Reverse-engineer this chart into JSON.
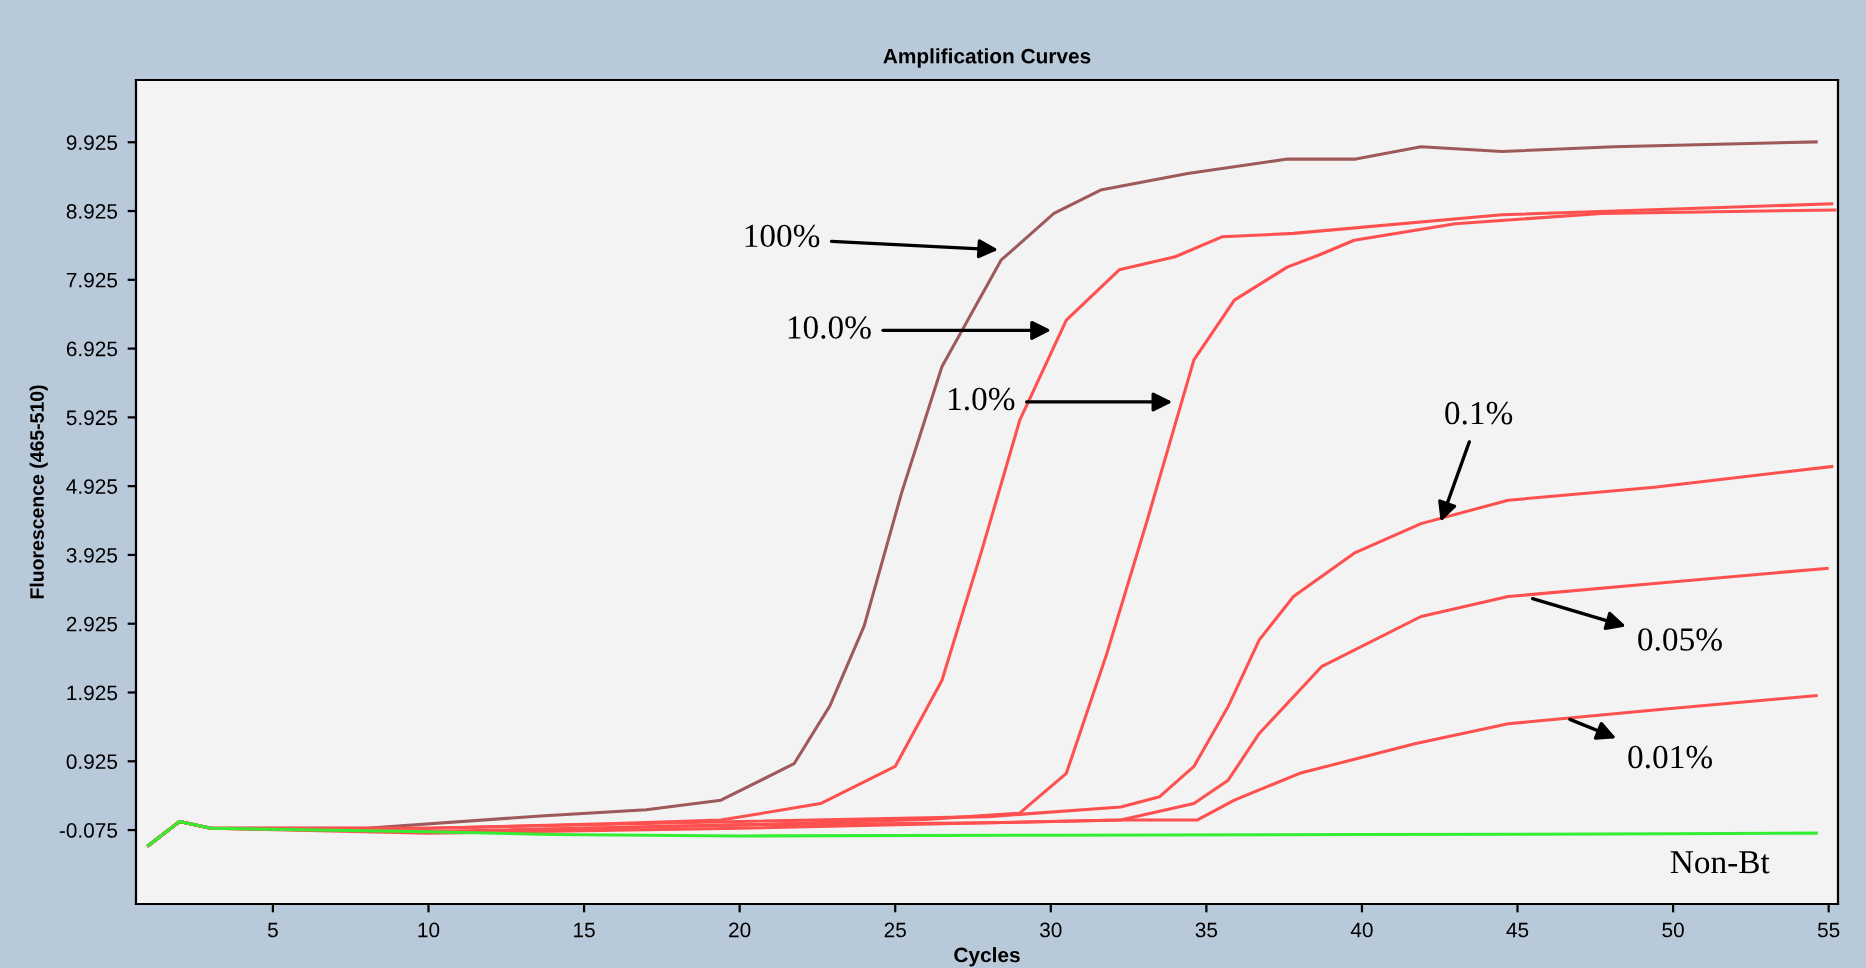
{
  "chart_data": {
    "type": "line",
    "title": "Amplification Curves",
    "xlabel": "Cycles",
    "ylabel": "Fluorescence (465-510)",
    "xlim": [
      0.6,
      55.3
    ],
    "ylim": [
      -1.15,
      10.83
    ],
    "xticks": [
      5,
      10,
      15,
      20,
      25,
      30,
      35,
      40,
      45,
      50,
      55
    ],
    "yticks": [
      -0.075,
      0.925,
      1.925,
      2.925,
      3.925,
      4.925,
      5.925,
      6.925,
      7.925,
      8.925,
      9.925
    ],
    "grid": false,
    "legend": false,
    "marker": "none",
    "line_style": "solid",
    "series": [
      {
        "color": "#9e5a5a",
        "x": [
          1,
          2,
          3,
          8,
          13.6,
          17,
          19.4,
          21.75,
          22.9,
          24.0,
          25.2,
          26.5,
          28.4,
          30.1,
          31.6,
          34.4,
          37.6,
          39.8,
          41.9,
          44.5,
          48.1,
          54.6
        ],
        "values": [
          -0.3,
          0.05,
          -0.05,
          -0.05,
          0.13,
          0.22,
          0.36,
          0.89,
          1.73,
          2.89,
          4.82,
          6.66,
          8.21,
          8.89,
          9.23,
          9.47,
          9.68,
          9.68,
          9.86,
          9.79,
          9.86,
          9.93
        ]
      },
      {
        "color": "#ff5050",
        "x": [
          1,
          2,
          3,
          10,
          16,
          19.4,
          22.6,
          25.0,
          26.5,
          27.75,
          29.0,
          30.5,
          32.2,
          34.0,
          35.5,
          37.8,
          44.5,
          55.1
        ],
        "values": [
          -0.3,
          0.05,
          -0.05,
          -0.05,
          0.02,
          0.07,
          0.31,
          0.85,
          2.1,
          3.94,
          5.88,
          7.34,
          8.07,
          8.26,
          8.55,
          8.6,
          8.87,
          9.03
        ]
      },
      {
        "color": "#ff5050",
        "x": [
          1,
          2,
          3,
          10,
          20,
          26,
          29.0,
          30.5,
          31.8,
          33.1,
          34.6,
          35.9,
          37.6,
          38.7,
          39.75,
          43.0,
          47.7,
          55.2
        ],
        "values": [
          -0.3,
          0.05,
          -0.05,
          -0.1,
          0.0,
          0.08,
          0.17,
          0.75,
          2.49,
          4.43,
          6.76,
          7.63,
          8.11,
          8.3,
          8.5,
          8.74,
          8.89,
          8.94
        ]
      },
      {
        "color": "#ff5050",
        "x": [
          1,
          2,
          3,
          10,
          20,
          28,
          32.25,
          33.5,
          34.6,
          35.7,
          36.7,
          37.8,
          39.75,
          41.9,
          44.7,
          49.4,
          55.1
        ],
        "values": [
          -0.3,
          0.05,
          -0.05,
          -0.05,
          0.05,
          0.12,
          0.26,
          0.41,
          0.85,
          1.72,
          2.69,
          3.32,
          3.95,
          4.38,
          4.72,
          4.91,
          5.21
        ]
      },
      {
        "color": "#ff5050",
        "x": [
          1,
          2,
          3,
          10,
          20,
          28,
          32.25,
          34.6,
          35.7,
          36.7,
          38.7,
          41.9,
          44.7,
          49.4,
          54.95
        ],
        "values": [
          -0.3,
          0.05,
          -0.05,
          -0.1,
          0.0,
          0.03,
          0.07,
          0.31,
          0.65,
          1.33,
          2.3,
          3.03,
          3.32,
          3.51,
          3.73
        ]
      },
      {
        "color": "#ff5050",
        "x": [
          1,
          2,
          3,
          10,
          20,
          28,
          32.25,
          34.7,
          35.9,
          38.0,
          41.7,
          44.7,
          49.4,
          54.6
        ],
        "values": [
          -0.3,
          0.05,
          -0.05,
          -0.12,
          -0.05,
          0.03,
          0.07,
          0.07,
          0.36,
          0.75,
          1.18,
          1.47,
          1.67,
          1.88
        ]
      },
      {
        "color": "#33ee33",
        "x": [
          1,
          2,
          3,
          10,
          14.0,
          20,
          30,
          40,
          50,
          54.6
        ],
        "values": [
          -0.3,
          0.05,
          -0.05,
          -0.1,
          -0.14,
          -0.16,
          -0.15,
          -0.14,
          -0.13,
          -0.12
        ]
      }
    ],
    "annotations": [
      {
        "text": "100%",
        "x": 28.4,
        "y": 8.36
      },
      {
        "text": "10.0%",
        "x": 30.1,
        "y": 7.19
      },
      {
        "text": "1.0%",
        "x": 34.0,
        "y": 6.15
      },
      {
        "text": "0.1%",
        "x": 42.5,
        "y": 4.37
      },
      {
        "text": "0.05%",
        "x": 45.4,
        "y": 3.3
      },
      {
        "text": "0.01%",
        "x": 46.6,
        "y": 1.55
      },
      {
        "text": "Non-Bt",
        "x": 51.5,
        "y": -0.14
      }
    ]
  }
}
